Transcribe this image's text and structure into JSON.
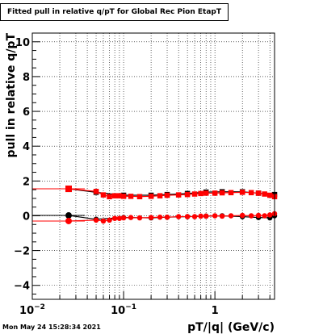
{
  "title": "Fitted pull in relative q/pT  for Global Rec Pion EtapT",
  "footer": "Mon May 24 15:28:34 2021",
  "colors": {
    "series_a": "#ff0000",
    "series_b": "#000000",
    "grid": "#000000"
  },
  "chart_data": {
    "type": "scatter",
    "title": "Fitted pull in relative q/pT  for Global Rec Pion EtapT",
    "xlabel": "pT/|q| (GeV/c)",
    "ylabel": "pull in relative q/pT",
    "x_scale": "log",
    "xlim": [
      0.01,
      4.5
    ],
    "ylim": [
      -4.8,
      10.5
    ],
    "x_tick_labels": [
      {
        "value": 0.01,
        "base": "10",
        "exp": "−2"
      },
      {
        "value": 0.1,
        "base": "10",
        "exp": "−1"
      },
      {
        "value": 1,
        "base": "1",
        "exp": ""
      }
    ],
    "y_ticks": [
      -4,
      -2,
      0,
      2,
      4,
      6,
      8,
      10
    ],
    "grid": true,
    "series": [
      {
        "color": "#000000",
        "marker": "square",
        "x": [
          0.025,
          0.05,
          0.1,
          0.2,
          0.3,
          0.5,
          0.8,
          1.2,
          2.0,
          3.0,
          4.5
        ],
        "y": [
          1.55,
          1.35,
          1.18,
          1.18,
          1.22,
          1.28,
          1.36,
          1.38,
          1.38,
          1.3,
          1.22
        ]
      },
      {
        "color": "#ff0000",
        "marker": "square",
        "x": [
          0.025,
          0.05,
          0.06,
          0.07,
          0.08,
          0.09,
          0.1,
          0.12,
          0.15,
          0.2,
          0.25,
          0.3,
          0.4,
          0.5,
          0.6,
          0.7,
          0.8,
          1.0,
          1.2,
          1.5,
          2.0,
          2.5,
          3.0,
          3.5,
          4.0,
          4.5
        ],
        "y": [
          1.55,
          1.4,
          1.2,
          1.1,
          1.15,
          1.15,
          1.12,
          1.12,
          1.1,
          1.12,
          1.15,
          1.18,
          1.2,
          1.22,
          1.25,
          1.28,
          1.3,
          1.3,
          1.32,
          1.33,
          1.35,
          1.33,
          1.3,
          1.25,
          1.18,
          1.1
        ]
      },
      {
        "color": "#000000",
        "marker": "circle",
        "x": [
          0.025,
          0.05,
          0.1,
          0.2,
          0.3,
          0.5,
          0.8,
          1.2,
          2.0,
          3.0,
          4.0,
          4.5
        ],
        "y": [
          0.02,
          -0.2,
          -0.1,
          -0.12,
          -0.08,
          -0.05,
          -0.02,
          0.0,
          -0.05,
          -0.1,
          -0.12,
          0.0
        ]
      },
      {
        "color": "#ff0000",
        "marker": "circle",
        "x": [
          0.025,
          0.05,
          0.06,
          0.07,
          0.08,
          0.09,
          0.1,
          0.12,
          0.15,
          0.2,
          0.25,
          0.3,
          0.4,
          0.5,
          0.6,
          0.7,
          0.8,
          1.0,
          1.2,
          1.5,
          2.0,
          2.5,
          3.0,
          3.5,
          4.0,
          4.5
        ],
        "y": [
          -0.3,
          -0.25,
          -0.3,
          -0.25,
          -0.15,
          -0.15,
          -0.12,
          -0.1,
          -0.12,
          -0.1,
          -0.08,
          -0.08,
          -0.05,
          -0.05,
          -0.05,
          -0.02,
          -0.02,
          0.0,
          -0.02,
          0.0,
          0.02,
          0.0,
          0.02,
          0.0,
          0.05,
          0.12
        ]
      }
    ]
  }
}
